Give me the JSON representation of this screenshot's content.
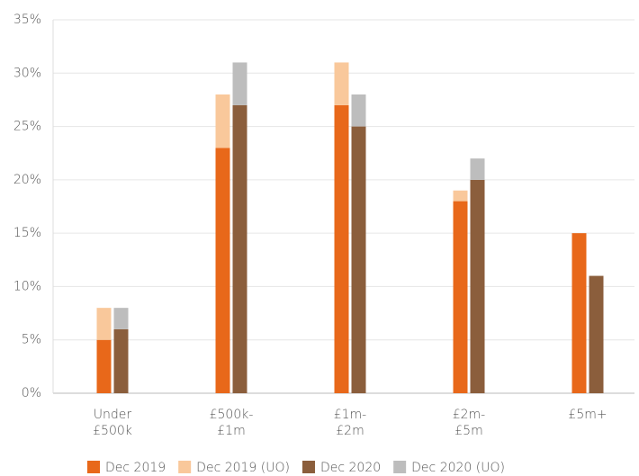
{
  "chart_data": {
    "type": "bar",
    "categories": [
      [
        "Under",
        "£500k"
      ],
      [
        "£500k-",
        "£1m"
      ],
      [
        "£1m-",
        "£2m"
      ],
      [
        "£2m-",
        "£5m"
      ],
      [
        "£5m+"
      ]
    ],
    "series": [
      {
        "name": "Dec 2019",
        "color": "#e8681a",
        "stack": 0,
        "values": [
          5,
          23,
          27,
          18,
          15
        ]
      },
      {
        "name": "Dec 2019 (UO)",
        "color": "#f9c89b",
        "stack": 0,
        "values": [
          3,
          5,
          4,
          1,
          0
        ]
      },
      {
        "name": "Dec 2020",
        "color": "#8b5e3c",
        "stack": 1,
        "values": [
          6,
          27,
          25,
          20,
          11
        ]
      },
      {
        "name": "Dec 2020 (UO)",
        "color": "#bdbdbd",
        "stack": 1,
        "values": [
          2,
          4,
          3,
          2,
          0
        ]
      }
    ],
    "ylim": [
      0,
      35
    ],
    "yticks": [
      {
        "value": 0,
        "label": "0%"
      },
      {
        "value": 5,
        "label": "5%"
      },
      {
        "value": 10,
        "label": "10%"
      },
      {
        "value": 15,
        "label": "15%"
      },
      {
        "value": 20,
        "label": "20%"
      },
      {
        "value": 25,
        "label": "25%"
      },
      {
        "value": 30,
        "label": "30%"
      },
      {
        "value": 35,
        "label": "35%"
      }
    ],
    "grid": true,
    "legend": "bottom"
  }
}
